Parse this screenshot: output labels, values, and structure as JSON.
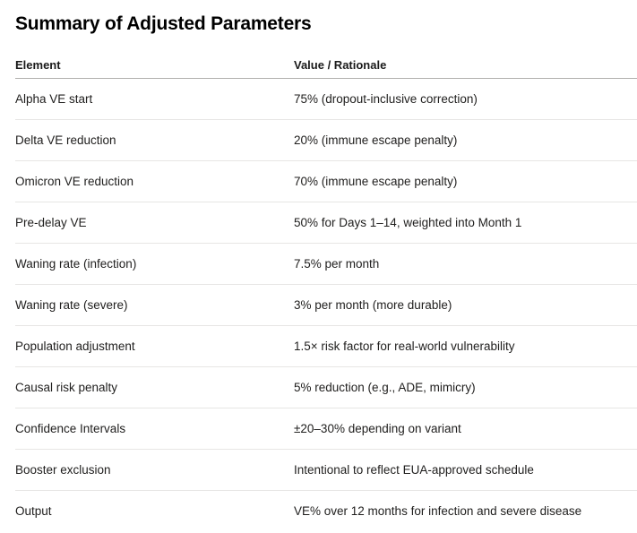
{
  "page": {
    "title": "Summary of Adjusted Parameters"
  },
  "table": {
    "headers": {
      "element": "Element",
      "value": "Value / Rationale"
    },
    "rows": [
      {
        "element": "Alpha VE start",
        "value": "75% (dropout-inclusive correction)"
      },
      {
        "element": "Delta VE reduction",
        "value": "20% (immune escape penalty)"
      },
      {
        "element": "Omicron VE reduction",
        "value": "70% (immune escape penalty)"
      },
      {
        "element": "Pre-delay VE",
        "value": "50% for Days 1–14, weighted into Month 1"
      },
      {
        "element": "Waning rate (infection)",
        "value": "7.5% per month"
      },
      {
        "element": "Waning rate (severe)",
        "value": "3% per month (more durable)"
      },
      {
        "element": "Population adjustment",
        "value": "1.5× risk factor for real-world vulnerability"
      },
      {
        "element": "Causal risk penalty",
        "value": "5% reduction (e.g., ADE, mimicry)"
      },
      {
        "element": "Confidence Intervals",
        "value": "±20–30% depending on variant"
      },
      {
        "element": "Booster exclusion",
        "value": "Intentional to reflect EUA-approved schedule"
      },
      {
        "element": "Output",
        "value": "VE% over 12 months for infection and severe disease"
      }
    ]
  },
  "colors": {
    "title_text": "#000000",
    "body_text": "#1f1e1d",
    "header_divider": "#b1afad",
    "row_divider": "#e7e6e4",
    "background": "#ffffff"
  }
}
